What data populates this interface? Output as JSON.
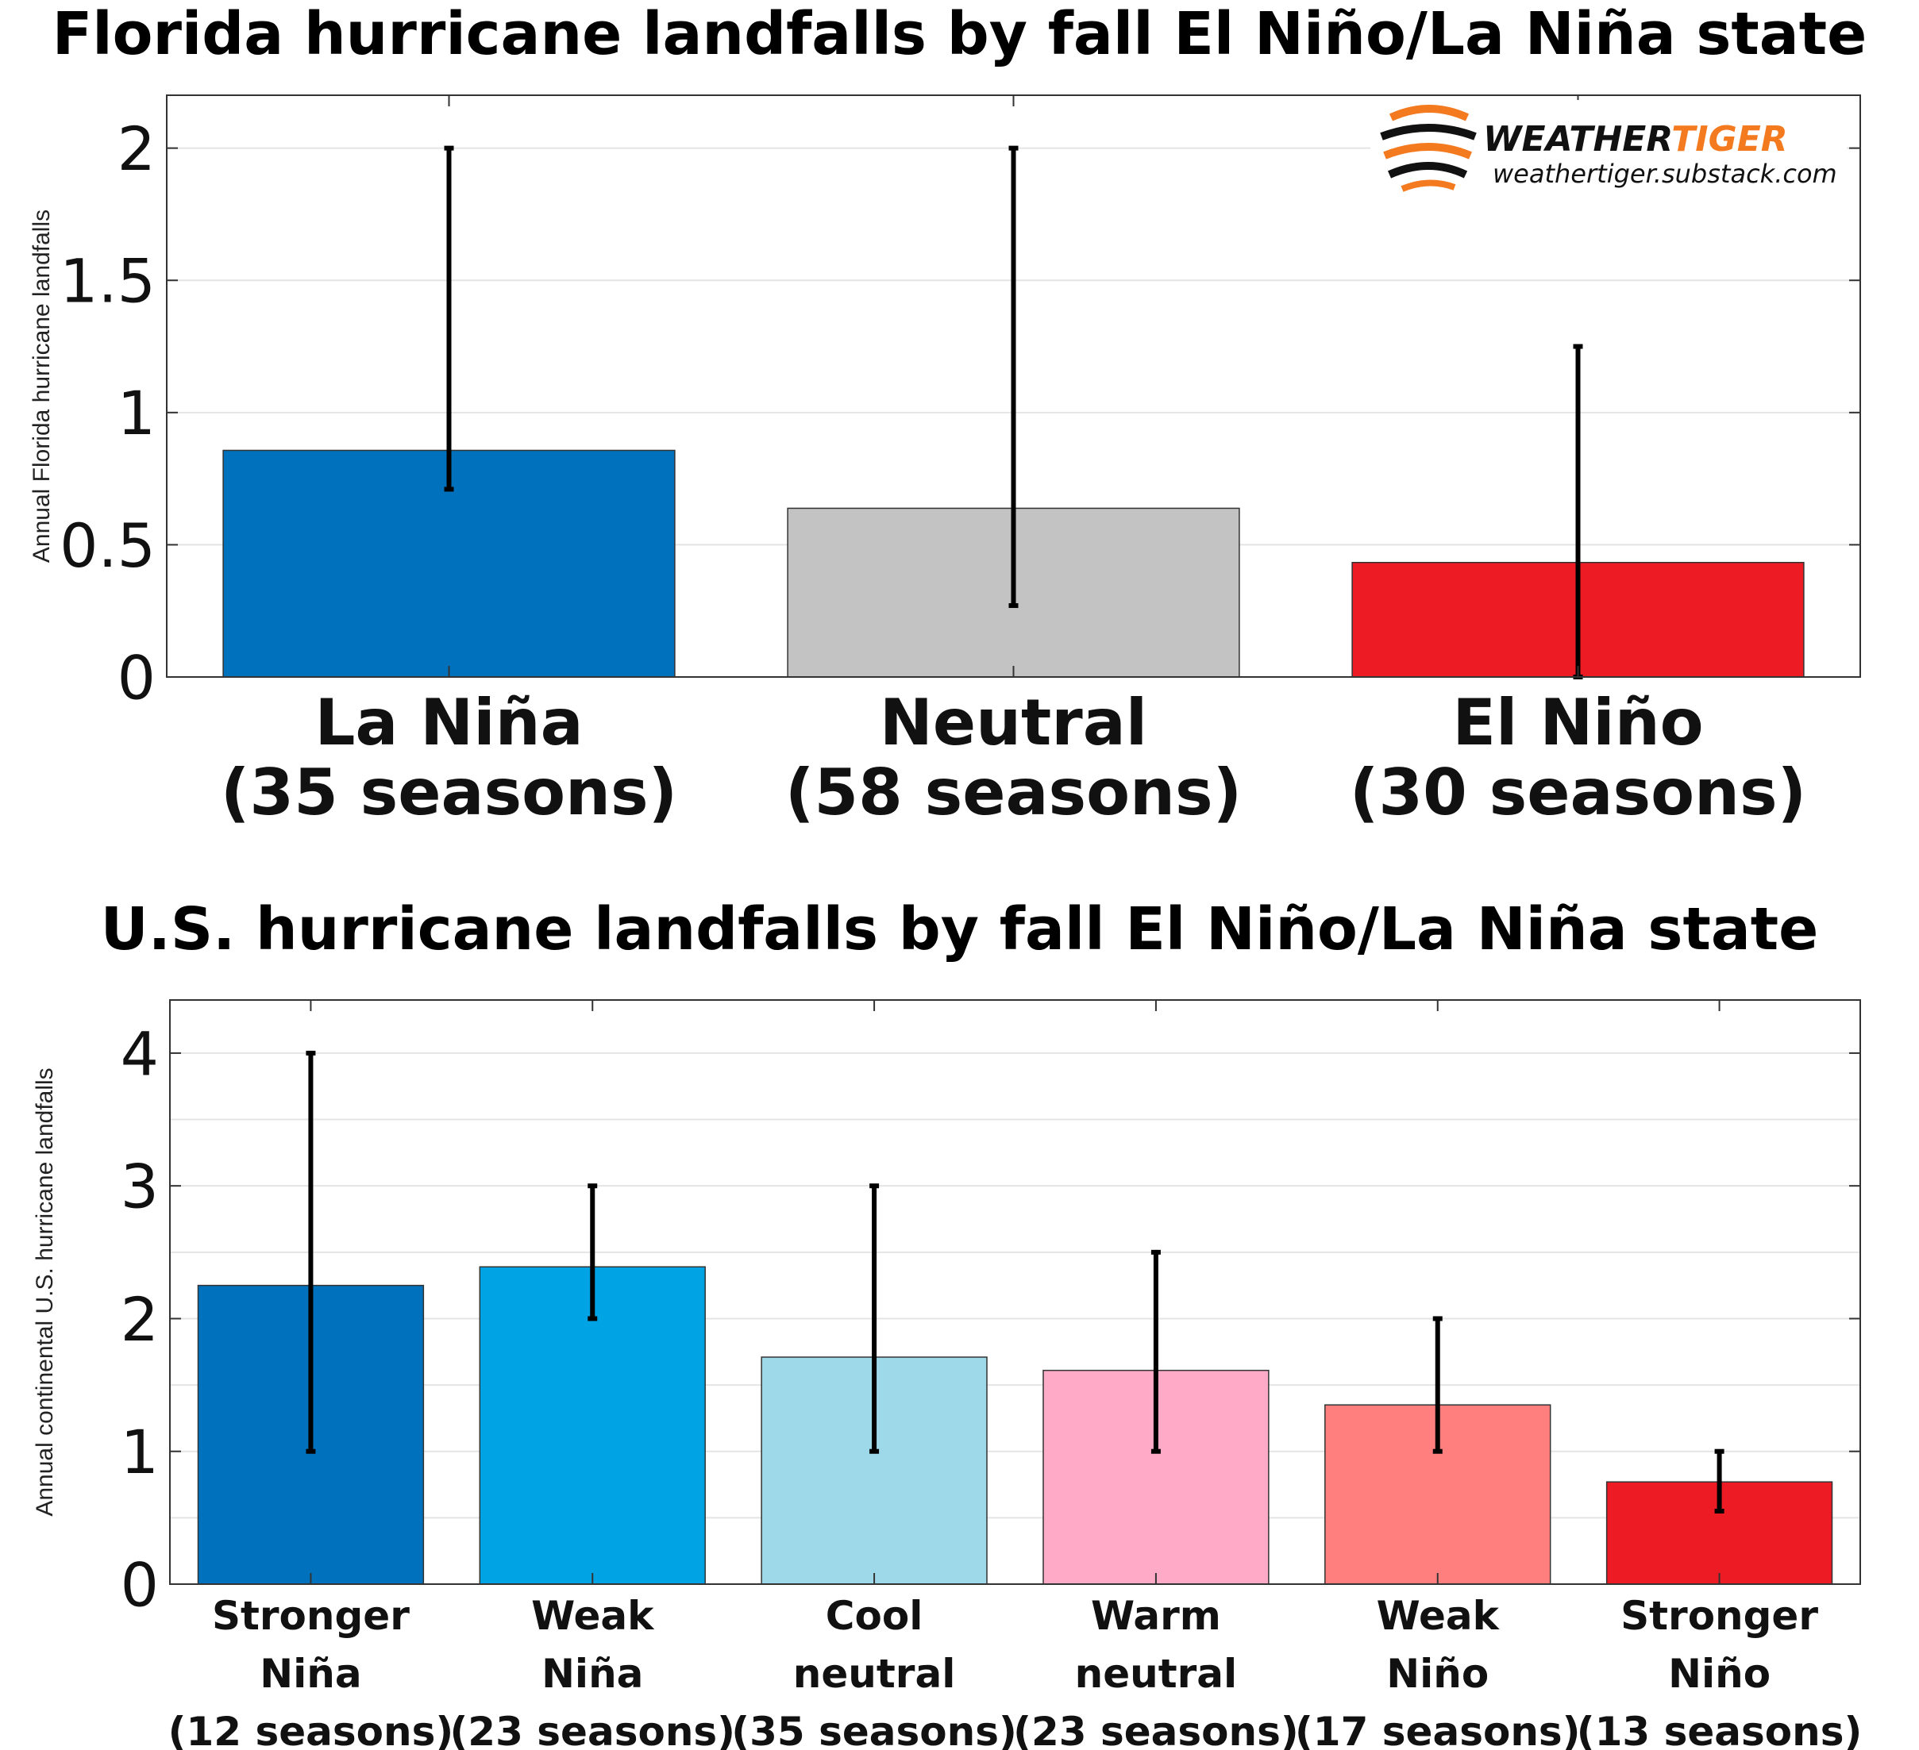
{
  "watermark": {
    "brand_part1": "WEATHER",
    "brand_part2": "TIGER",
    "url": "weathertiger.substack.com",
    "brand_color": "#f47a20"
  },
  "chart_data": [
    {
      "type": "bar",
      "title": "Florida hurricane landfalls by fall El Niño/La Niña state",
      "ylabel": "Annual Florida hurricane landfalls",
      "xlabel": "",
      "categories": [
        [
          "La Niña",
          "(35 seasons)"
        ],
        [
          "Neutral",
          "(58 seasons)"
        ],
        [
          "El Niño",
          "(30 seasons)"
        ]
      ],
      "values": [
        0.857,
        0.638,
        0.433
      ],
      "error_low": [
        0.71,
        0.27,
        0.0
      ],
      "error_high": [
        2.0,
        2.0,
        1.25
      ],
      "colors": [
        "#0072bd",
        "#c3c3c3",
        "#ed1c24"
      ],
      "ylim": [
        0,
        2.2
      ],
      "yticks": [
        0,
        0.5,
        1,
        1.5,
        2
      ],
      "ytick_labels": [
        "0",
        "0.5",
        "1",
        "1.5",
        "2"
      ],
      "grid": true
    },
    {
      "type": "bar",
      "title": "U.S. hurricane landfalls by fall El Niño/La Niña state",
      "ylabel": "Annual continental U.S. hurricane landfalls",
      "xlabel": "",
      "categories": [
        [
          "Stronger",
          "Niña",
          "(12 seasons)"
        ],
        [
          "Weak",
          "Niña",
          "(23 seasons)"
        ],
        [
          "Cool",
          "neutral",
          "(35 seasons)"
        ],
        [
          "Warm",
          "neutral",
          "(23 seasons)"
        ],
        [
          "Weak",
          "Niño",
          "(17 seasons)"
        ],
        [
          "Stronger",
          "Niño",
          "(13 seasons)"
        ]
      ],
      "values": [
        2.25,
        2.39,
        1.71,
        1.61,
        1.35,
        0.77
      ],
      "error_low": [
        1.0,
        2.0,
        1.0,
        1.0,
        1.0,
        0.55
      ],
      "error_high": [
        4.0,
        3.0,
        3.0,
        2.5,
        2.0,
        1.0
      ],
      "colors": [
        "#0072bd",
        "#00a4e4",
        "#9ed9ea",
        "#ffabc8",
        "#ff7f7f",
        "#ed1c24"
      ],
      "ylim": [
        0,
        4.4
      ],
      "yticks": [
        0,
        1,
        2,
        3,
        4
      ],
      "ytick_labels": [
        "0",
        "1",
        "2",
        "3",
        "4"
      ],
      "grid": true
    }
  ]
}
